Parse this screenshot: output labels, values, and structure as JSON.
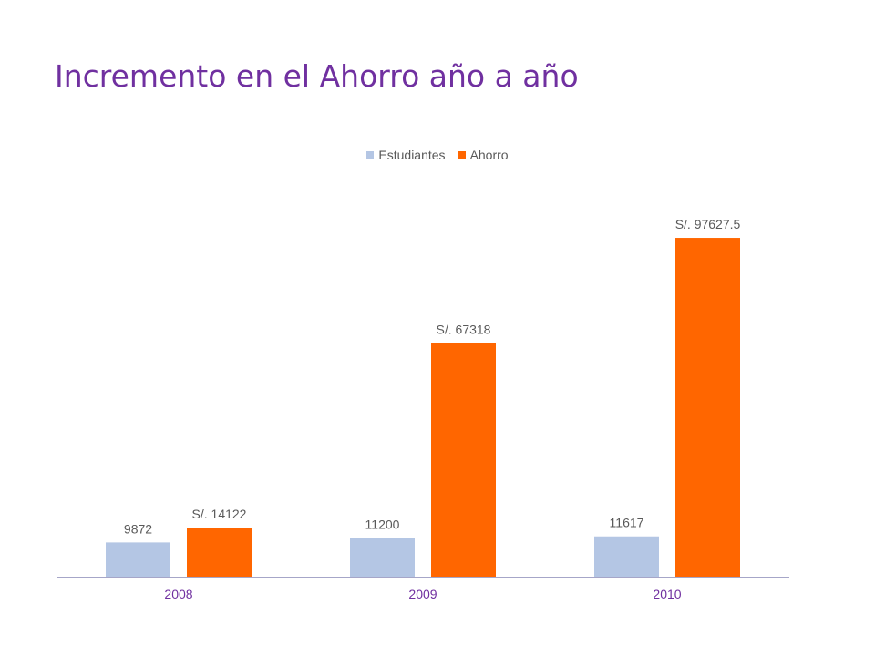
{
  "title": "Incremento en el Ahorro año a año",
  "colors": {
    "estudiantes": "#b4c6e4",
    "ahorro": "#ff6600",
    "title": "#7030a0",
    "axis": "#a6a6c8"
  },
  "chart_data": {
    "type": "bar",
    "title": "Incremento en el Ahorro año a año",
    "categories": [
      "2008",
      "2009",
      "2010"
    ],
    "series": [
      {
        "name": "Estudiantes",
        "values": [
          9872,
          11200,
          11617
        ],
        "labels": [
          "9872",
          "11200",
          "11617"
        ],
        "color": "#b4c6e4"
      },
      {
        "name": "Ahorro",
        "values": [
          14122,
          67318,
          97627.5
        ],
        "labels": [
          "S/. 14122",
          "S/. 67318",
          "S/. 97627.5"
        ],
        "color": "#ff6600"
      }
    ],
    "xlabel": "",
    "ylabel": "",
    "ylim": [
      0,
      100000
    ],
    "grid": false,
    "legend_position": "top-center"
  }
}
